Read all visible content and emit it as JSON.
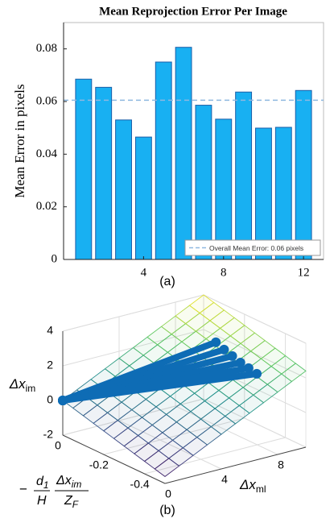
{
  "chart_data": [
    {
      "type": "bar",
      "title": "Mean Reprojection Error Per Image",
      "ylabel": "Mean Error in pixels",
      "x": [
        1,
        2,
        3,
        4,
        5,
        6,
        7,
        8,
        9,
        10,
        11,
        12
      ],
      "values": [
        0.0685,
        0.0654,
        0.053,
        0.0465,
        0.075,
        0.0806,
        0.0586,
        0.0533,
        0.0636,
        0.0499,
        0.0502,
        0.0642
      ],
      "color": "#18b0f2",
      "edge_color": "#1a5ea8",
      "xlim": [
        0,
        13
      ],
      "xticks": [
        4,
        8,
        12
      ],
      "ylim": [
        0,
        0.09
      ],
      "yticks": [
        0,
        0.02,
        0.04,
        0.06,
        0.08
      ],
      "reference_line": {
        "value": 0.0605,
        "label": "Overall Mean Error: 0.06 pixels",
        "color": "#8fb8e0"
      },
      "legend": "lower right",
      "caption": "(a)"
    },
    {
      "type": "scatter3d",
      "xlabel": {
        "text": "Δx",
        "sub": "ml"
      },
      "ylabel": {
        "sign": "−",
        "num1": "d",
        "num1_sub": "1",
        "den1": "H",
        "num2": "Δx",
        "num2_sub": "im",
        "den2": "Z",
        "den2_sub": "F"
      },
      "zlabel": {
        "text": "Δx",
        "sub": "im"
      },
      "xlim": [
        0,
        10
      ],
      "xticks": [
        0,
        4,
        8
      ],
      "ylim": [
        -0.5,
        0
      ],
      "yticks": [
        0,
        -0.2,
        -0.4
      ],
      "zlim": [
        -2,
        4
      ],
      "zticks": [
        -2,
        0,
        2,
        4
      ],
      "surface": {
        "x": [
          0,
          10
        ],
        "y": [
          0,
          -0.5
        ],
        "z": [
          [
            0,
            -1.6
          ],
          [
            4,
            2.4
          ]
        ]
      },
      "series": [
        {
          "color": "#0e6cb5",
          "x": [
            0,
            10
          ],
          "y": [
            0,
            -0.06
          ],
          "z": [
            0,
            1.6
          ]
        },
        {
          "color": "#0e6cb5",
          "x": [
            0,
            10
          ],
          "y": [
            0,
            -0.1
          ],
          "z": [
            0,
            1.4
          ]
        },
        {
          "color": "#0e6cb5",
          "x": [
            0,
            10
          ],
          "y": [
            0,
            -0.14
          ],
          "z": [
            0,
            1.25
          ]
        },
        {
          "color": "#0e6cb5",
          "x": [
            0,
            10
          ],
          "y": [
            0,
            -0.18
          ],
          "z": [
            0,
            1.1
          ]
        },
        {
          "color": "#0e6cb5",
          "x": [
            0,
            10
          ],
          "y": [
            0,
            -0.22
          ],
          "z": [
            0,
            1.0
          ]
        },
        {
          "color": "#0e6cb5",
          "x": [
            0,
            10
          ],
          "y": [
            0,
            -0.26
          ],
          "z": [
            0,
            0.9
          ]
        }
      ],
      "caption": "(b)"
    }
  ]
}
